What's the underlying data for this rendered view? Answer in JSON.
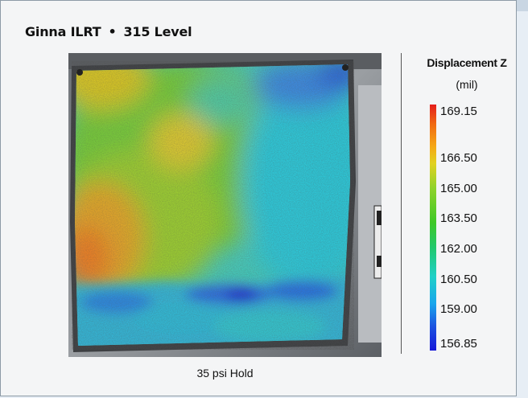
{
  "title": {
    "part1": "Ginna ILRT",
    "separator": "•",
    "part2": "315 Level"
  },
  "caption": "35 psi Hold",
  "legend": {
    "title": "Displacement Z",
    "unit": "(mil)",
    "ticks": [
      "169.15",
      "166.50",
      "165.00",
      "163.50",
      "162.00",
      "160.50",
      "159.00",
      "156.85"
    ]
  },
  "colors": {
    "panel_bg": "#f4f5f6",
    "panel_border": "#8d9aa6",
    "colormap_high": "#e41d1a",
    "colormap_low": "#1618d8"
  }
}
